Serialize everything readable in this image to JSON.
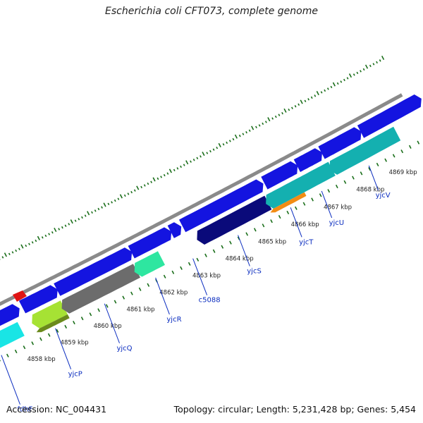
{
  "title": "Escherichia coli CFT073, complete genome",
  "footer": {
    "accession": "Accession: NC_004431",
    "summary": "Topology: circular; Length: 5,231,428 bp; Genes: 5,454"
  },
  "colors": {
    "backbone": "#8a8a8a",
    "cds_blue": "#1414e0",
    "cds_cyan": "#19e5e5",
    "cds_navy": "#0a0a7a",
    "cds_gray": "#6c6c6c",
    "cds_yellowgreen": "#a6e234",
    "cds_olive": "#6a8a1c",
    "cds_springgreen": "#2ee6a0",
    "cds_teal": "#14b0b0",
    "cds_orange": "#f28c14",
    "marker_red": "#e01414",
    "tick_green": "#1a6e1a"
  },
  "ticks": {
    "scale_labels": [
      "4858 kbp",
      "4859 kbp",
      "4860 kbp",
      "4861 kbp",
      "4862 kbp",
      "4863 kbp",
      "4864 kbp",
      "4865 kbp",
      "4866 kbp",
      "4867 kbp",
      "4868 kbp",
      "4869 kbp"
    ],
    "scale_kbp": [
      4858,
      4859,
      4860,
      4861,
      4862,
      4863,
      4864,
      4865,
      4866,
      4867,
      4868,
      4869
    ]
  },
  "genes": [
    {
      "name": "fdhF",
      "start_kbp": 4857.0,
      "end_kbp": 4858.45,
      "strand": "-",
      "color": "cds_cyan"
    },
    {
      "name": "yjcP",
      "start_kbp": 4858.9,
      "end_kbp": 4859.75,
      "strand": "-",
      "color": "cds_yellowgreen"
    },
    {
      "name": "",
      "start_kbp": 4858.9,
      "end_kbp": 4859.75,
      "strand": "-",
      "color": "cds_olive"
    },
    {
      "name": "yjcQ",
      "start_kbp": 4859.8,
      "end_kbp": 4861.95,
      "strand": "-",
      "color": "cds_gray"
    },
    {
      "name": "yjcR",
      "start_kbp": 4862.0,
      "end_kbp": 4862.7,
      "strand": "-",
      "color": "cds_springgreen"
    },
    {
      "name": "yjcS",
      "start_kbp": 4863.9,
      "end_kbp": 4865.95,
      "strand": "-",
      "color": "cds_navy"
    },
    {
      "name": "yjcT",
      "start_kbp": 4866.0,
      "end_kbp": 4866.95,
      "strand": "-",
      "color": "cds_orange"
    },
    {
      "name": "",
      "start_kbp": 4866.0,
      "end_kbp": 4866.95,
      "strand": "-",
      "color": "cds_teal"
    },
    {
      "name": "yjcU",
      "start_kbp": 4866.95,
      "end_kbp": 4867.9,
      "strand": "-",
      "color": "cds_teal"
    },
    {
      "name": "yjcV",
      "start_kbp": 4867.95,
      "end_kbp": 4869.9,
      "strand": "-",
      "color": "cds_teal"
    }
  ],
  "extra_labels": [
    {
      "name": "c5088"
    }
  ]
}
